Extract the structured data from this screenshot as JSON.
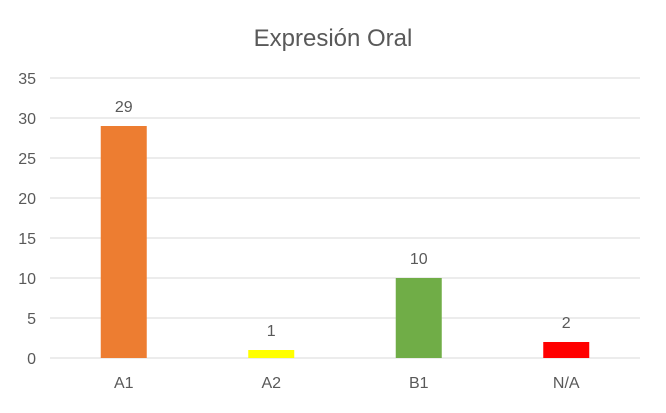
{
  "chart_data": {
    "type": "bar",
    "title": "Expresión Oral",
    "categories": [
      "A1",
      "A2",
      "B1",
      "N/A"
    ],
    "values": [
      29,
      1,
      10,
      2
    ],
    "colors": [
      "#ED7D31",
      "#FFFF00",
      "#70AD47",
      "#FF0000"
    ],
    "data_labels": [
      "29",
      "1",
      "10",
      "2"
    ],
    "xlabel": "",
    "ylabel": "",
    "ylim": [
      0,
      35
    ],
    "yticks": [
      0,
      5,
      10,
      15,
      20,
      25,
      30,
      35
    ],
    "grid": true,
    "legend": "none"
  }
}
